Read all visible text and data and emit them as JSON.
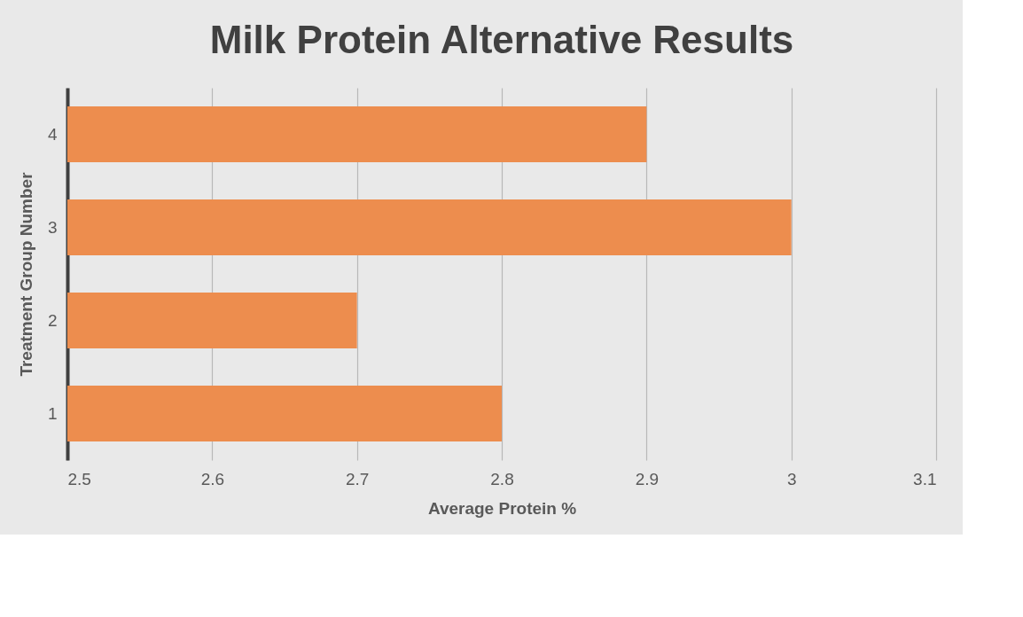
{
  "chart_data": {
    "type": "bar",
    "orientation": "horizontal",
    "title": "Milk Protein Alternative Results",
    "xlabel": "Average Protein %",
    "ylabel": "Treatment Group Number",
    "categories": [
      "4",
      "3",
      "2",
      "1"
    ],
    "values": [
      2.9,
      3.0,
      2.7,
      2.8
    ],
    "color": "#ed8d4e",
    "xlim": [
      2.5,
      3.1
    ],
    "xticks": [
      2.5,
      2.6,
      2.7,
      2.8,
      2.9,
      3,
      3.1
    ],
    "grid": "x"
  }
}
